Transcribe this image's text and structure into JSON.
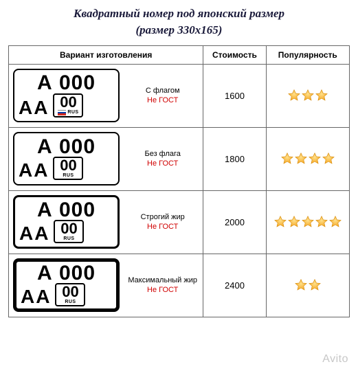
{
  "title": {
    "line1": "Квадратный номер под японский размер",
    "line2": "(размер 330х165)",
    "color": "#1a1a3a",
    "fontsize": 17
  },
  "table": {
    "columns": [
      {
        "label": "Вариант изготовления",
        "key": "variant"
      },
      {
        "label": "Стоимость",
        "key": "cost"
      },
      {
        "label": "Популярность",
        "key": "pop"
      }
    ],
    "star": {
      "fill": "#f5a623",
      "stroke": "#d48806"
    },
    "plate_text": {
      "row1": "А 000",
      "row2_letters": "АА",
      "region_code": "00",
      "rus": "RUS",
      "flag_colors": [
        "#ffffff",
        "#0039a6",
        "#d52b1e"
      ]
    },
    "rows": [
      {
        "variant_name": "С флагом",
        "variant_note": "Не ГОСТ",
        "cost": "1600",
        "stars": 3,
        "plate_border": "border2",
        "show_flag": true
      },
      {
        "variant_name": "Без флага",
        "variant_note": "Не ГОСТ",
        "cost": "1800",
        "stars": 4,
        "plate_border": "border2",
        "show_flag": false
      },
      {
        "variant_name": "Строгий жир",
        "variant_note": "Не ГОСТ",
        "cost": "2000",
        "stars": 5,
        "plate_border": "border3",
        "show_flag": false
      },
      {
        "variant_name": "Максимальный жир",
        "variant_note": "Не ГОСТ",
        "cost": "2400",
        "stars": 2,
        "plate_border": "border4",
        "show_flag": false
      }
    ]
  },
  "watermark": "Avito",
  "colors": {
    "note_red": "#d00000",
    "border": "#666666",
    "watermark": "#c7c7c7"
  }
}
